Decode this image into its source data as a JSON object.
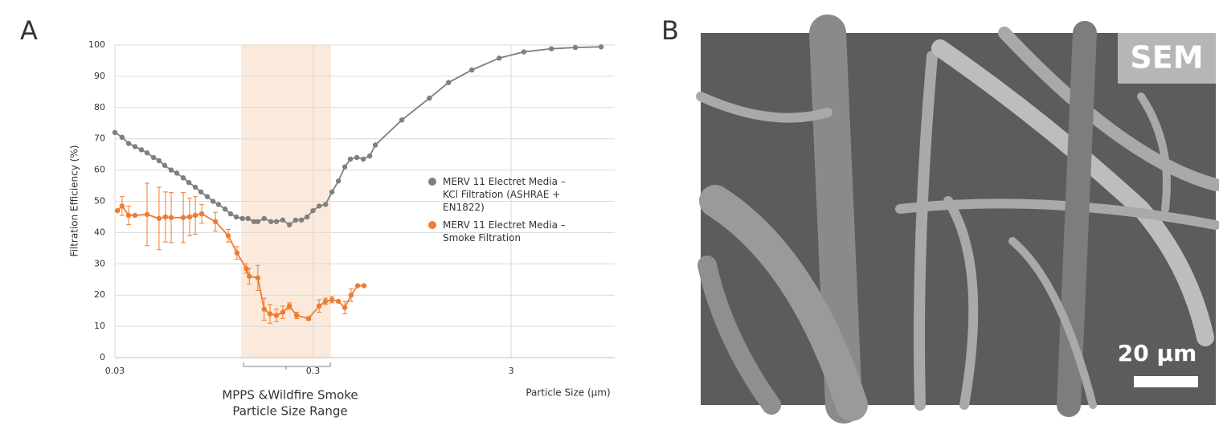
{
  "chart_data": {
    "type": "line",
    "ylabel": "Filtration Efficiency (%)",
    "xlabel": "Particle Size (µm)",
    "xscale": "log",
    "xlim": [
      0.03,
      10
    ],
    "xticks": [
      0.03,
      0.3,
      3
    ],
    "ylim": [
      0,
      100
    ],
    "yticks": [
      0,
      10,
      20,
      30,
      40,
      50,
      60,
      70,
      80,
      90,
      100
    ],
    "grid": true,
    "legend": "center right",
    "highlight": {
      "range": [
        0.13,
        0.37
      ],
      "color": "#fbeadb",
      "label": [
        "MPPS &Wildfire Smoke",
        "Particle Size Range"
      ]
    },
    "series": [
      {
        "name": "MERV 11 Electret Media – KCl Filtration (ASHRAE + EN1822)",
        "color": "#7f7f7f",
        "x": [
          0.03,
          0.0326,
          0.0352,
          0.0379,
          0.0408,
          0.0436,
          0.047,
          0.0501,
          0.0535,
          0.0577,
          0.0616,
          0.0664,
          0.0709,
          0.0764,
          0.0815,
          0.0878,
          0.0938,
          0.1,
          0.108,
          0.115,
          0.123,
          0.132,
          0.141,
          0.151,
          0.158,
          0.17,
          0.184,
          0.196,
          0.211,
          0.228,
          0.245,
          0.262,
          0.28,
          0.3,
          0.322,
          0.347,
          0.374,
          0.403,
          0.434,
          0.463,
          0.499,
          0.538,
          0.58,
          0.619,
          0.842,
          1.16,
          1.45,
          1.9,
          2.61,
          3.48,
          4.79,
          6.33,
          8.54
        ],
        "values": [
          72,
          70.5,
          68.5,
          67.5,
          66.5,
          65.5,
          64,
          63,
          61.5,
          60,
          59,
          57.5,
          56,
          54.5,
          53,
          51.5,
          50,
          49,
          47.5,
          46,
          45,
          44.5,
          44.5,
          43.5,
          43.5,
          44.5,
          43.5,
          43.5,
          44,
          42.5,
          44,
          44,
          45,
          47,
          48.5,
          49,
          53,
          56.5,
          61,
          63.5,
          64,
          63.5,
          64.5,
          68,
          76,
          83,
          88,
          92,
          95.8,
          97.8,
          98.8,
          99.2,
          99.4
        ]
      },
      {
        "name": "MERV 11 Electret Media – Smoke Filtration",
        "color": "#ed7d31",
        "x": [
          0.0309,
          0.0326,
          0.0352,
          0.0379,
          0.0436,
          0.0501,
          0.054,
          0.0577,
          0.0664,
          0.0715,
          0.0764,
          0.0823,
          0.0965,
          0.112,
          0.124,
          0.138,
          0.143,
          0.158,
          0.17,
          0.182,
          0.196,
          0.211,
          0.228,
          0.248,
          0.285,
          0.322,
          0.347,
          0.374,
          0.403,
          0.434,
          0.467,
          0.504,
          0.543
        ],
        "values": [
          47,
          48.5,
          45.5,
          45.5,
          45.8,
          44.5,
          45,
          44.8,
          44.8,
          45,
          45.5,
          46,
          43.5,
          39,
          33.5,
          28.5,
          26,
          25.5,
          15.5,
          14,
          13.5,
          14.5,
          16.5,
          13.5,
          12.5,
          16.5,
          18,
          18.5,
          18,
          16,
          20,
          23,
          23
        ],
        "errors": [
          0,
          3,
          3,
          0,
          10,
          10,
          8,
          8,
          8,
          6,
          6,
          3,
          3,
          2,
          2,
          1.5,
          2.5,
          4,
          3.5,
          3,
          2,
          2,
          1,
          1,
          0.5,
          2,
          1,
          1,
          0,
          2,
          2,
          0,
          0
        ]
      }
    ]
  },
  "panel_labels": [
    "A",
    "B"
  ],
  "image": {
    "label": "SEM",
    "scale_bar": "20 µm"
  }
}
